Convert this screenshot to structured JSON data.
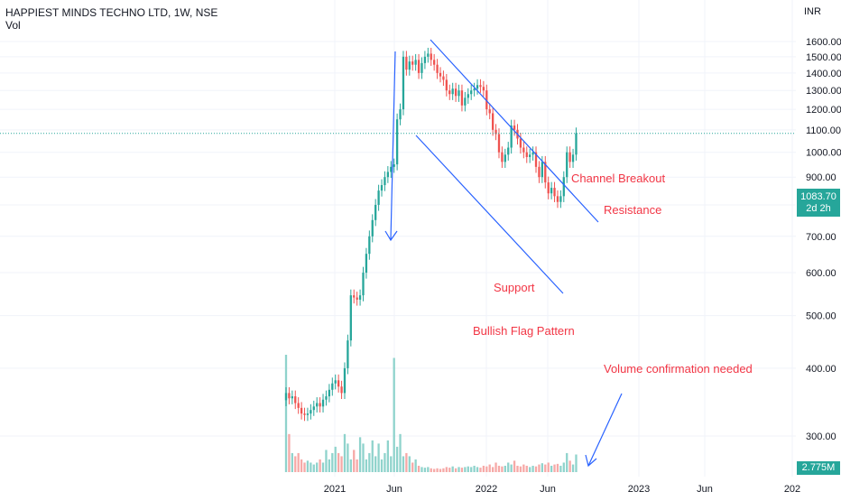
{
  "header": {
    "title": "HAPPIEST MINDS TECHNO LTD, 1W, NSE",
    "volume_label": "Vol"
  },
  "price_axis": {
    "currency": "INR",
    "ticks": [
      "1600.00",
      "1500.00",
      "1400.00",
      "1300.00",
      "1200.00",
      "1100.00",
      "1000.00",
      "900.00",
      "800.00",
      "700.00",
      "600.00",
      "500.00",
      "400.00",
      "300.00"
    ]
  },
  "time_axis": {
    "ticks": [
      "2021",
      "Jun",
      "2022",
      "Jun",
      "2023",
      "Jun",
      "202"
    ]
  },
  "last_price": {
    "value": "1083.70",
    "countdown": "2d 2h"
  },
  "last_volume": "2.775M",
  "annotations": {
    "channel_breakout": "Channel Breakout",
    "resistance": "Resistance",
    "support": "Support",
    "pattern": "Bullish Flag Pattern",
    "volume_note": "Volume confirmation needed"
  },
  "colors": {
    "up": "#26a69a",
    "down": "#ef5350",
    "vol_up": "#8fd3cc",
    "vol_down": "#f6a9a7",
    "annotation_text": "#f23645",
    "drawing": "#2962ff",
    "grid": "#f0f3fa",
    "axis_text": "#131722"
  },
  "chart_data": {
    "type": "candlestick",
    "title": "HAPPIEST MINDS TECHNO LTD, 1W, NSE",
    "ylabel": "INR",
    "y_scale": "log",
    "ylim": [
      240,
      1650
    ],
    "grid": true,
    "series": [
      {
        "name": "Price",
        "close": [
          360,
          352,
          355,
          345,
          338,
          330,
          328,
          330,
          335,
          340,
          345,
          340,
          350,
          355,
          365,
          375,
          380,
          370,
          360,
          400,
          450,
          545,
          540,
          535,
          545,
          600,
          650,
          700,
          750,
          800,
          850,
          870,
          900,
          920,
          940,
          950,
          1150,
          1200,
          1500,
          1420,
          1470,
          1450,
          1480,
          1400,
          1460,
          1500,
          1520,
          1480,
          1450,
          1400,
          1380,
          1360,
          1300,
          1280,
          1310,
          1270,
          1300,
          1220,
          1260,
          1280,
          1300,
          1310,
          1330,
          1320,
          1300,
          1200,
          1180,
          1100,
          1080,
          1000,
          960,
          990,
          1020,
          1120,
          1100,
          1060,
          1020,
          1000,
          980,
          990,
          1000,
          940,
          900,
          960,
          880,
          840,
          860,
          830,
          810,
          830,
          900,
          1000,
          960,
          990,
          1083.7
        ]
      },
      {
        "name": "Vol",
        "values_m": [
          18.5,
          6,
          3,
          2.5,
          3,
          2,
          1.5,
          1.8,
          1.5,
          1.2,
          1.5,
          2,
          1.5,
          3.5,
          2,
          3,
          4,
          3,
          2.5,
          6,
          4.5,
          2,
          3.5,
          2,
          5.5,
          4.5,
          2,
          3,
          5,
          2.5,
          4.5,
          2,
          3,
          5,
          2.5,
          18,
          4,
          6,
          2.5,
          3,
          2.5,
          1.5,
          2,
          1,
          0.8,
          0.7,
          0.8,
          0.6,
          0.5,
          0.6,
          0.5,
          0.6,
          0.8,
          0.7,
          0.9,
          0.6,
          0.8,
          0.7,
          0.8,
          0.9,
          0.8,
          1,
          0.8,
          0.7,
          1,
          0.9,
          1.2,
          0.8,
          1.5,
          1,
          0.9,
          1,
          1.5,
          1.2,
          1.8,
          1,
          0.9,
          1.2,
          1,
          0.8,
          1,
          0.9,
          1.2,
          1.4,
          1.2,
          1.5,
          1,
          1.2,
          1.3,
          1,
          1.5,
          3,
          1.8,
          1.2,
          2.775
        ]
      }
    ],
    "x_start": "2020-09-14",
    "x_interval": "1W"
  }
}
